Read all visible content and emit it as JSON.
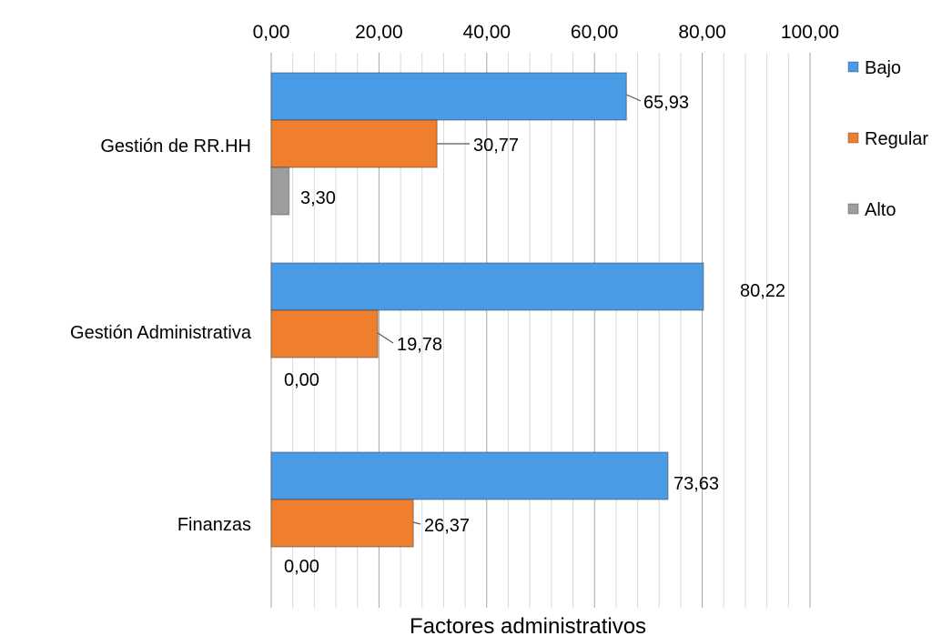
{
  "chart_data": {
    "type": "bar",
    "orientation": "horizontal",
    "categories": [
      "Gestión de RR.HH",
      "Gestión Administrativa",
      "Finanzas"
    ],
    "series": [
      {
        "name": "Bajo",
        "values": [
          65.93,
          80.22,
          73.63
        ],
        "labels": [
          "65,93",
          "80,22",
          "73,63"
        ],
        "color": "#4a9be6"
      },
      {
        "name": "Regular",
        "values": [
          30.77,
          19.78,
          26.37
        ],
        "labels": [
          "30,77",
          "19,78",
          "26,37"
        ],
        "color": "#f07f2d"
      },
      {
        "name": "Alto",
        "values": [
          3.3,
          0.0,
          0.0
        ],
        "labels": [
          "3,30",
          "0,00",
          "0,00"
        ],
        "color": "#9e9e9e"
      }
    ],
    "x_ticks": [
      "0,00",
      "20,00",
      "40,00",
      "60,00",
      "80,00",
      "100,00"
    ],
    "xlim": [
      0,
      100
    ],
    "xlabel": "Factores administrativos",
    "axis_position": "top",
    "legend_position": "right",
    "grid": true
  }
}
